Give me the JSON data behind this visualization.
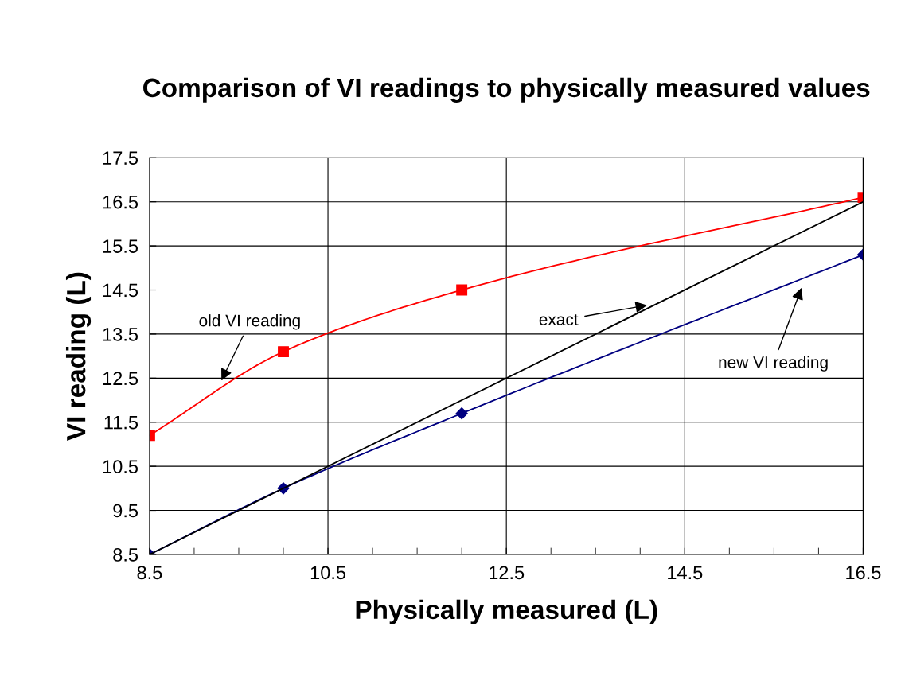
{
  "chart_data": {
    "type": "line",
    "title": "Comparison of VI readings to physically measured values",
    "xlabel": "Physically measured (L)",
    "ylabel": "VI reading (L)",
    "series": [
      {
        "name": "old VI reading",
        "color": "#ff0000",
        "x": [
          8.5,
          10.0,
          12.0,
          16.5
        ],
        "values": [
          11.2,
          13.1,
          14.5,
          16.6
        ],
        "marker": "square"
      },
      {
        "name": "new VI reading",
        "color": "#000080",
        "x": [
          8.5,
          10.0,
          12.0,
          16.5
        ],
        "values": [
          8.5,
          10.0,
          11.7,
          15.3
        ],
        "marker": "diamond"
      },
      {
        "name": "exact",
        "color": "#000000",
        "x": [
          8.5,
          16.5
        ],
        "values": [
          8.5,
          16.5
        ],
        "marker": "none"
      }
    ],
    "xlim": [
      8.5,
      16.5
    ],
    "ylim": [
      8.5,
      17.5
    ],
    "xticks": [
      8.5,
      {
        "value": 9.0,
        "label": null
      },
      {
        "value": 9.5,
        "label": null
      },
      {
        "value": 10.0,
        "label": null
      },
      10.5,
      {
        "value": 11.0,
        "label": null
      },
      {
        "value": 11.5,
        "label": null
      },
      {
        "value": 12.0,
        "label": null
      },
      12.5,
      {
        "value": 13.0,
        "label": null
      },
      {
        "value": 13.5,
        "label": null
      },
      {
        "value": 14.0,
        "label": null
      },
      14.5,
      {
        "value": 15.0,
        "label": null
      },
      {
        "value": 15.5,
        "label": null
      },
      {
        "value": 16.0,
        "label": null
      },
      16.5
    ],
    "yticks": [
      8.5,
      9.5,
      10.5,
      11.5,
      12.5,
      13.5,
      14.5,
      15.5,
      16.5,
      17.5
    ],
    "grid": true,
    "line_style": "solid"
  }
}
